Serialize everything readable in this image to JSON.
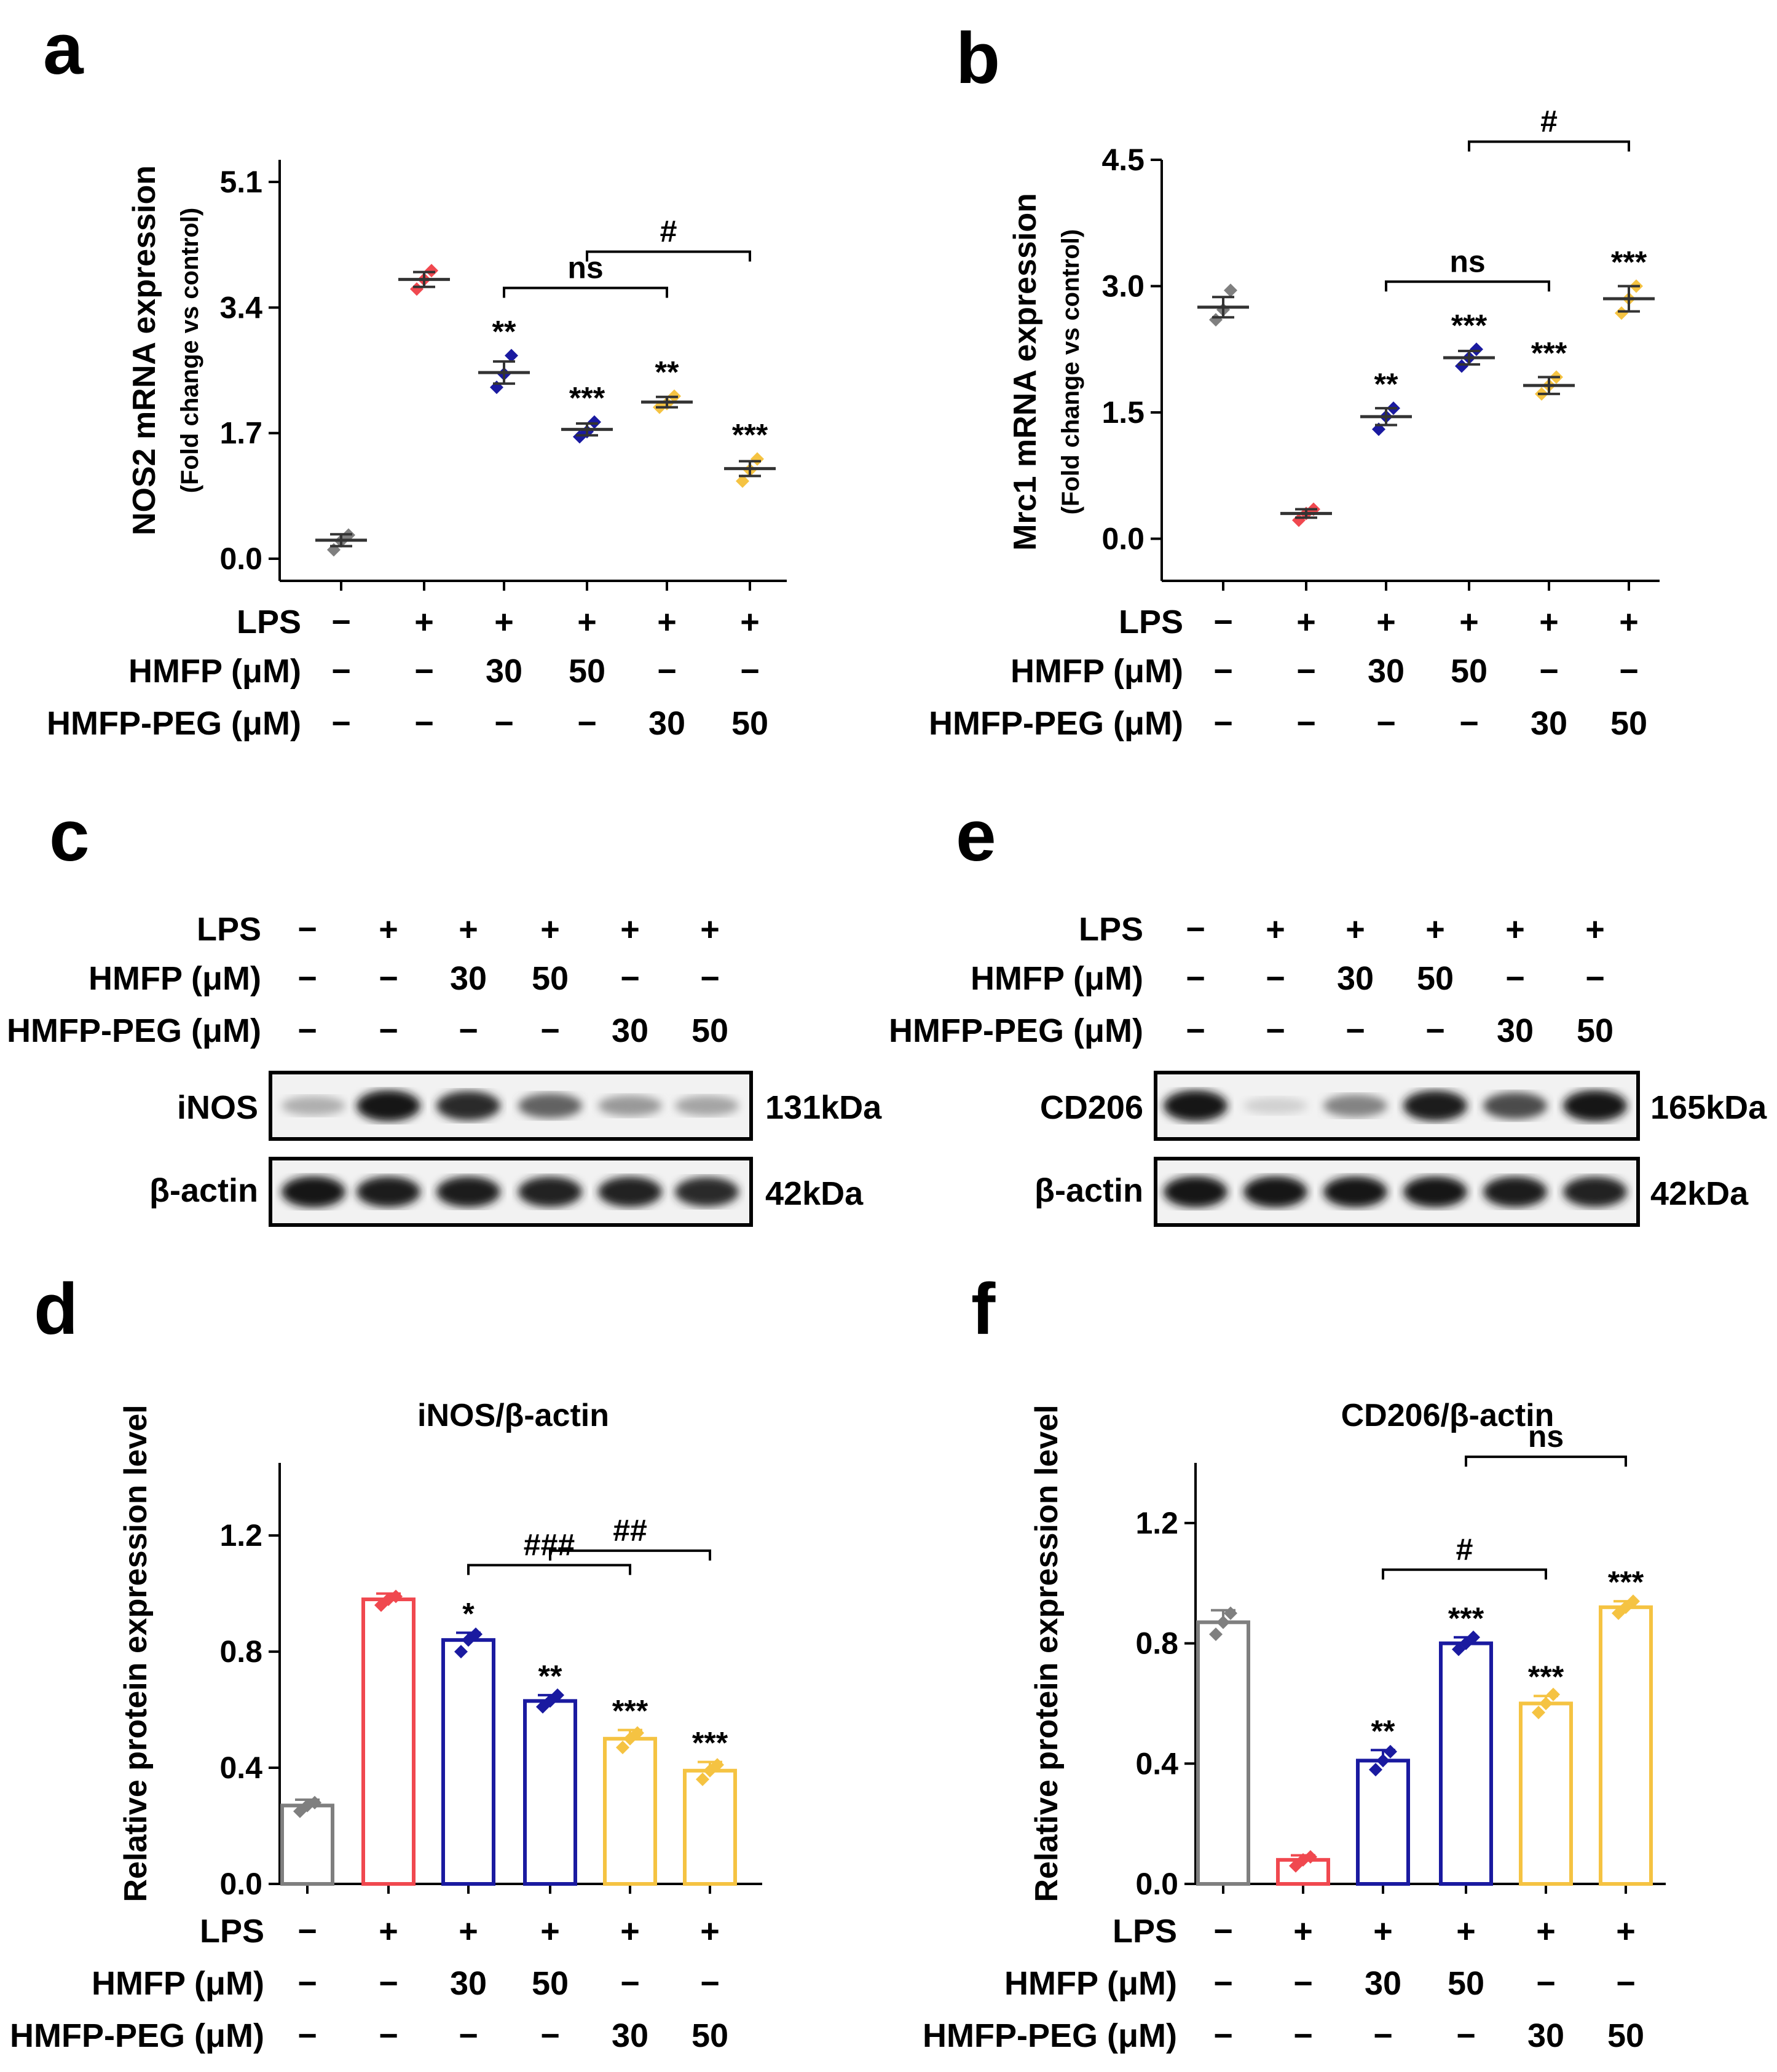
{
  "colors": {
    "control": "#7f7f7f",
    "lps": "#f0484f",
    "hmfp": "#1a1aa0",
    "hmfp_peg": "#f5c342",
    "axis": "#000000"
  },
  "treatment_table": {
    "row_labels": [
      "LPS",
      "HMFP (μM)",
      "HMFP-PEG (μM)"
    ],
    "lps": [
      "−",
      "+",
      "+",
      "+",
      "+",
      "+"
    ],
    "hmfp": [
      "−",
      "−",
      "30",
      "50",
      "−",
      "−"
    ],
    "hmfp_peg": [
      "−",
      "−",
      "−",
      "−",
      "30",
      "50"
    ]
  },
  "chart_data": [
    {
      "panel": "a",
      "type": "scatter",
      "ylabel": "NOS2 mRNA expression",
      "ylabel2": "(Fold change vs control)",
      "yticks": [
        "0.0",
        "1.7",
        "3.4",
        "5.1"
      ],
      "ylim": [
        -0.3,
        5.4
      ],
      "means": [
        0.25,
        3.78,
        2.52,
        1.75,
        2.12,
        1.22
      ],
      "errors": [
        0.08,
        0.1,
        0.15,
        0.08,
        0.07,
        0.1
      ],
      "points": [
        [
          0.12,
          0.24,
          0.32
        ],
        [
          3.65,
          3.78,
          3.9
        ],
        [
          2.32,
          2.5,
          2.75
        ],
        [
          1.65,
          1.72,
          1.85
        ],
        [
          2.05,
          2.1,
          2.2
        ],
        [
          1.05,
          1.2,
          1.35
        ]
      ],
      "stars": [
        "",
        "",
        "**",
        "***",
        "**",
        "***"
      ],
      "brackets": [
        {
          "from": 2,
          "to": 4,
          "label": "ns"
        },
        {
          "from": 3,
          "to": 5,
          "label": "#"
        }
      ]
    },
    {
      "panel": "b",
      "type": "scatter",
      "ylabel": "Mrc1 mRNA expression",
      "ylabel2": "(Fold change vs control)",
      "yticks": [
        "0.0",
        "1.5",
        "3.0",
        "4.5"
      ],
      "ylim": [
        -0.5,
        4.5
      ],
      "means": [
        2.75,
        0.3,
        1.45,
        2.15,
        1.82,
        2.85
      ],
      "errors": [
        0.12,
        0.05,
        0.1,
        0.08,
        0.1,
        0.15
      ],
      "points": [
        [
          2.6,
          2.72,
          2.95
        ],
        [
          0.22,
          0.3,
          0.35
        ],
        [
          1.3,
          1.45,
          1.55
        ],
        [
          2.05,
          2.15,
          2.25
        ],
        [
          1.72,
          1.82,
          1.92
        ],
        [
          2.68,
          2.85,
          3.0
        ]
      ],
      "stars": [
        "",
        "",
        "**",
        "***",
        "***",
        "***"
      ],
      "brackets": [
        {
          "from": 2,
          "to": 4,
          "label": "ns"
        },
        {
          "from": 3,
          "to": 5,
          "label": "#"
        }
      ]
    },
    {
      "panel": "d",
      "type": "bar",
      "title": "iNOS/β-actin",
      "ylabel": "Relative protein expression level",
      "yticks": [
        "0.0",
        "0.4",
        "0.8",
        "1.2"
      ],
      "ylim": [
        0,
        1.45
      ],
      "values": [
        0.27,
        0.98,
        0.84,
        0.63,
        0.5,
        0.39
      ],
      "errors": [
        0.02,
        0.02,
        0.025,
        0.02,
        0.03,
        0.03
      ],
      "points": [
        [
          0.25,
          0.27,
          0.28
        ],
        [
          0.96,
          0.98,
          0.99
        ],
        [
          0.8,
          0.84,
          0.86
        ],
        [
          0.61,
          0.63,
          0.65
        ],
        [
          0.47,
          0.5,
          0.52
        ],
        [
          0.36,
          0.39,
          0.41
        ]
      ],
      "stars": [
        "",
        "",
        "*",
        "**",
        "***",
        "***"
      ],
      "brackets": [
        {
          "from": 2,
          "to": 4,
          "label": "###"
        },
        {
          "from": 3,
          "to": 5,
          "label": "##"
        }
      ]
    },
    {
      "panel": "f",
      "type": "bar",
      "title": "CD206/β-actin",
      "ylabel": "Relative protein expression level",
      "yticks": [
        "0.0",
        "0.4",
        "0.8",
        "1.2"
      ],
      "ylim": [
        0,
        1.4
      ],
      "values": [
        0.87,
        0.08,
        0.41,
        0.8,
        0.6,
        0.92
      ],
      "errors": [
        0.04,
        0.015,
        0.035,
        0.02,
        0.025,
        0.02
      ],
      "points": [
        [
          0.83,
          0.87,
          0.9
        ],
        [
          0.06,
          0.08,
          0.09
        ],
        [
          0.38,
          0.41,
          0.44
        ],
        [
          0.78,
          0.8,
          0.82
        ],
        [
          0.57,
          0.6,
          0.63
        ],
        [
          0.9,
          0.92,
          0.94
        ]
      ],
      "stars": [
        "",
        "",
        "**",
        "***",
        "***",
        "***"
      ],
      "brackets": [
        {
          "from": 2,
          "to": 4,
          "label": "#"
        },
        {
          "from": 3,
          "to": 5,
          "label": "ns"
        }
      ]
    }
  ],
  "blots": [
    {
      "panel": "c",
      "target_label": "iNOS",
      "target_kda": "131kDa",
      "actin_label": "β-actin",
      "actin_kda": "42kDa",
      "target_intensity": [
        0.25,
        0.95,
        0.85,
        0.6,
        0.35,
        0.3
      ],
      "actin_intensity": [
        0.95,
        0.92,
        0.92,
        0.9,
        0.9,
        0.85
      ]
    },
    {
      "panel": "e",
      "target_label": "CD206",
      "target_kda": "165kDa",
      "actin_label": "β-actin",
      "actin_kda": "42kDa",
      "target_intensity": [
        0.95,
        0.1,
        0.45,
        0.92,
        0.7,
        0.95
      ],
      "actin_intensity": [
        0.95,
        0.95,
        0.93,
        0.93,
        0.92,
        0.9
      ]
    }
  ],
  "panel_labels": [
    "a",
    "b",
    "c",
    "d",
    "e",
    "f"
  ]
}
